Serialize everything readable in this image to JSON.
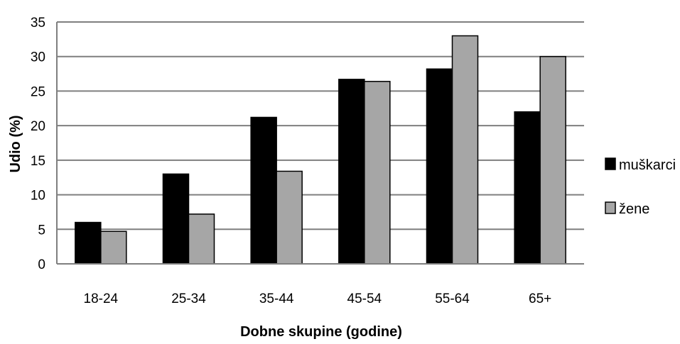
{
  "chart_data": {
    "type": "bar",
    "title": "",
    "xlabel": "Dobne skupine (godine)",
    "ylabel": "Udio (%)",
    "ylim": [
      0,
      35
    ],
    "yticks": [
      0,
      5,
      10,
      15,
      20,
      25,
      30,
      35
    ],
    "grid": true,
    "legend_position": "right",
    "categories": [
      "18-24",
      "25-34",
      "35-44",
      "45-54",
      "55-64",
      "65+"
    ],
    "series": [
      {
        "name": "muškarci",
        "color": "#000000",
        "values": [
          6,
          13,
          21.2,
          26.7,
          28.2,
          22
        ]
      },
      {
        "name": "žene",
        "color": "#a6a6a6",
        "values": [
          4.7,
          7.2,
          13.4,
          26.4,
          33,
          30
        ]
      }
    ]
  }
}
